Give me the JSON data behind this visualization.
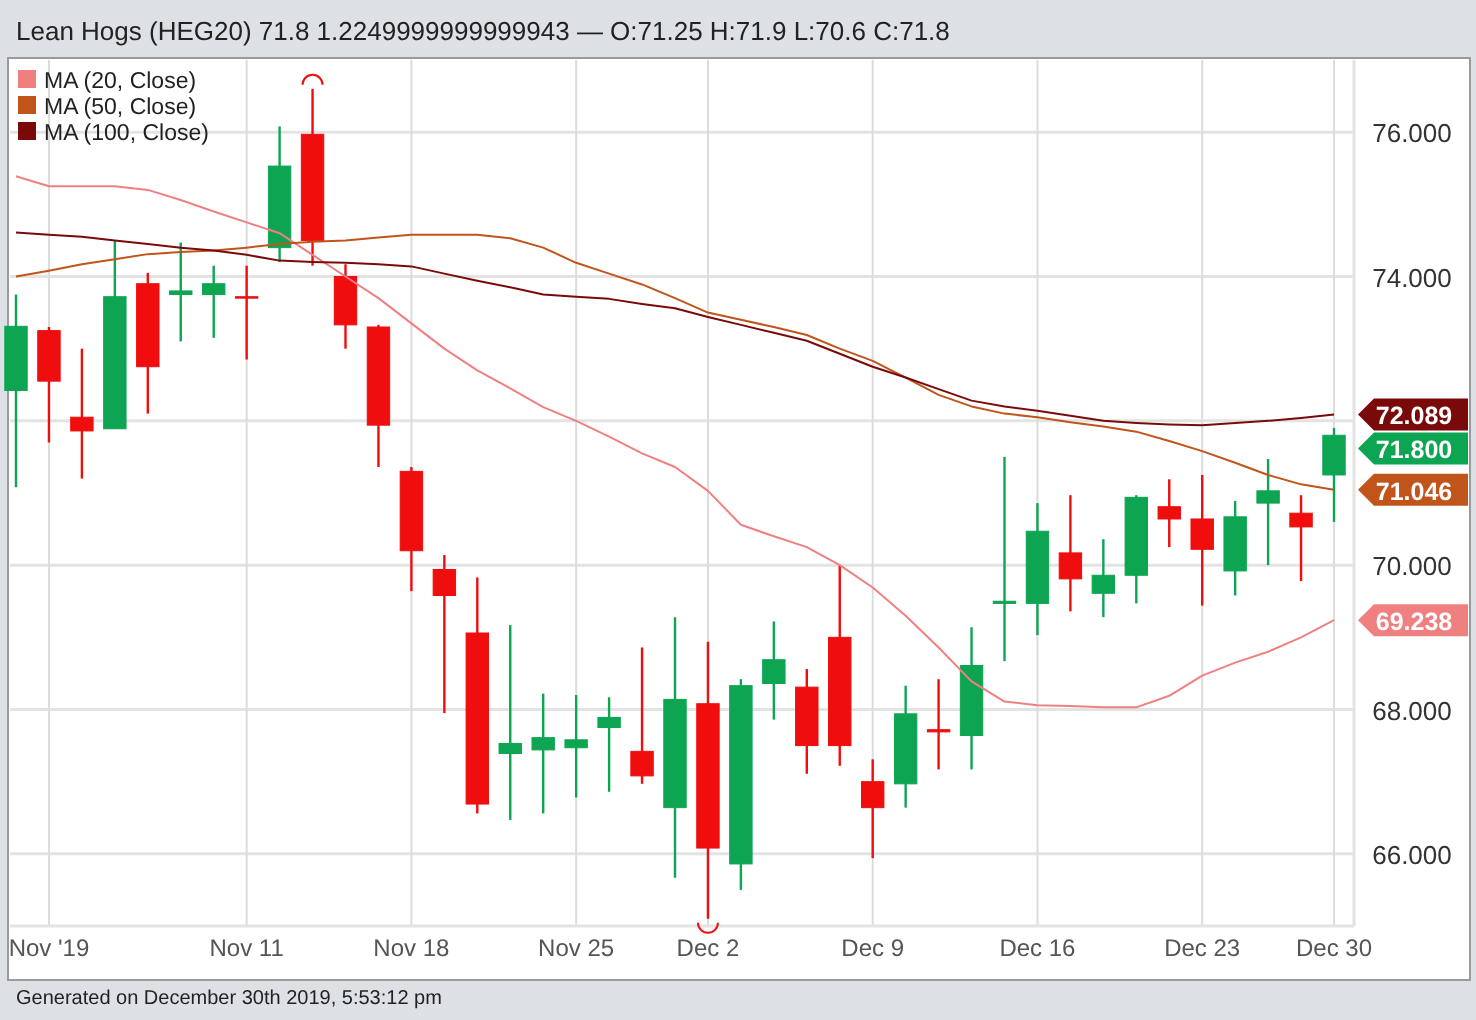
{
  "chart_data": {
    "type": "candlestick",
    "title": "Lean Hogs (HEG20) 71.8 1.2249999999999943 — O:71.25 H:71.9 L:70.6 C:71.8",
    "categories": [
      null,
      "Nov '19",
      null,
      null,
      null,
      null,
      null,
      "Nov 11",
      null,
      null,
      null,
      null,
      "Nov 18",
      null,
      null,
      null,
      null,
      "Nov 25",
      null,
      null,
      null,
      "Dec 2",
      null,
      null,
      null,
      null,
      "Dec 9",
      null,
      null,
      null,
      null,
      "Dec 16",
      null,
      null,
      null,
      null,
      "Dec 23",
      null,
      null,
      null,
      "Dec 30"
    ],
    "ohlc": [
      [
        72.42,
        73.75,
        71.08,
        73.31
      ],
      [
        73.25,
        73.3,
        71.7,
        72.55
      ],
      [
        72.05,
        73.0,
        71.2,
        71.86
      ],
      [
        71.89,
        74.5,
        71.89,
        73.72
      ],
      [
        73.9,
        74.05,
        72.1,
        72.75
      ],
      [
        73.75,
        74.47,
        73.1,
        73.8
      ],
      [
        73.75,
        74.15,
        73.15,
        73.9
      ],
      [
        73.72,
        74.15,
        72.85,
        73.7
      ],
      [
        74.4,
        76.08,
        74.2,
        75.53
      ],
      [
        75.97,
        76.6,
        74.15,
        74.5
      ],
      [
        74.0,
        74.17,
        73.0,
        73.33
      ],
      [
        73.3,
        73.33,
        71.36,
        71.94
      ],
      [
        71.3,
        71.36,
        69.64,
        70.2
      ],
      [
        69.94,
        70.14,
        67.95,
        69.58
      ],
      [
        69.06,
        69.83,
        66.56,
        66.69
      ],
      [
        67.39,
        69.17,
        66.47,
        67.53
      ],
      [
        67.44,
        68.22,
        66.56,
        67.61
      ],
      [
        67.47,
        68.2,
        66.78,
        67.58
      ],
      [
        67.75,
        68.17,
        66.86,
        67.89
      ],
      [
        67.42,
        68.86,
        66.97,
        67.08
      ],
      [
        66.64,
        69.28,
        65.67,
        68.14
      ],
      [
        68.08,
        68.94,
        65.1,
        66.08
      ],
      [
        65.86,
        68.42,
        65.5,
        68.33
      ],
      [
        68.36,
        69.22,
        67.86,
        68.69
      ],
      [
        68.31,
        68.56,
        67.11,
        67.5
      ],
      [
        69.0,
        70.0,
        67.22,
        67.5
      ],
      [
        67.0,
        67.31,
        65.94,
        66.64
      ],
      [
        66.97,
        68.33,
        66.64,
        67.94
      ],
      [
        67.72,
        68.42,
        67.17,
        67.69
      ],
      [
        67.64,
        69.14,
        67.17,
        68.61
      ],
      [
        69.47,
        71.5,
        68.67,
        69.5
      ],
      [
        69.47,
        70.86,
        69.03,
        70.47
      ],
      [
        70.17,
        70.97,
        69.36,
        69.81
      ],
      [
        69.61,
        70.36,
        69.28,
        69.86
      ],
      [
        69.86,
        70.97,
        69.47,
        70.94
      ],
      [
        70.81,
        71.19,
        70.25,
        70.64
      ],
      [
        70.64,
        71.25,
        69.44,
        70.22
      ],
      [
        69.92,
        70.89,
        69.58,
        70.67
      ],
      [
        70.86,
        71.47,
        70.0,
        71.03
      ],
      [
        70.72,
        70.97,
        69.78,
        70.53
      ],
      [
        71.25,
        71.9,
        70.6,
        71.8
      ]
    ],
    "colors": [
      "#0ea552",
      "#f00d0d",
      "#f00d0d",
      "#0ea552",
      "#f00d0d",
      "#0ea552",
      "#0ea552",
      "#f00d0d",
      "#0ea552",
      "#f00d0d",
      "#f00d0d",
      "#f00d0d",
      "#f00d0d",
      "#f00d0d",
      "#f00d0d",
      "#0ea552",
      "#0ea552",
      "#0ea552",
      "#0ea552",
      "#f00d0d",
      "#0ea552",
      "#f00d0d",
      "#0ea552",
      "#0ea552",
      "#f00d0d",
      "#f00d0d",
      "#f00d0d",
      "#0ea552",
      "#f00d0d",
      "#0ea552",
      "#0ea552",
      "#0ea552",
      "#f00d0d",
      "#0ea552",
      "#0ea552",
      "#f00d0d",
      "#f00d0d",
      "#0ea552",
      "#0ea552",
      "#f00d0d",
      "#0ea552"
    ],
    "value_labels": [
      null,
      null,
      null,
      null,
      null,
      null,
      null,
      null,
      null,
      null,
      null,
      null,
      null,
      null,
      null,
      null,
      null,
      null,
      null,
      null,
      null,
      null,
      null,
      null,
      null,
      null,
      null,
      null,
      null,
      null,
      null,
      null,
      null,
      null,
      null,
      null,
      null,
      null,
      null,
      null,
      "71.800"
    ],
    "series": [
      {
        "name": "MA (20, Close)",
        "type": "line",
        "color": "#f08080",
        "values": [
          75.39,
          75.25,
          75.25,
          75.25,
          75.2,
          75.06,
          74.9,
          74.75,
          74.6,
          74.3,
          74.0,
          73.7,
          73.35,
          73.0,
          72.7,
          72.45,
          72.19,
          72.0,
          71.78,
          71.55,
          71.36,
          71.03,
          70.56,
          70.4,
          70.25,
          70.0,
          69.69,
          69.3,
          68.86,
          68.39,
          68.11,
          68.06,
          68.05,
          68.03,
          68.03,
          68.19,
          68.47,
          68.65,
          68.8,
          69.0,
          69.238
        ],
        "value_labels": [
          null,
          null,
          null,
          null,
          null,
          null,
          null,
          null,
          null,
          null,
          null,
          null,
          null,
          null,
          null,
          null,
          null,
          null,
          null,
          null,
          null,
          null,
          null,
          null,
          null,
          null,
          null,
          null,
          null,
          null,
          null,
          null,
          null,
          null,
          null,
          null,
          null,
          null,
          null,
          null,
          "69.238"
        ]
      },
      {
        "name": "MA (50, Close)",
        "type": "line",
        "color": "#c0541a",
        "values": [
          74.0,
          74.08,
          74.17,
          74.24,
          74.31,
          74.34,
          74.36,
          74.4,
          74.45,
          74.48,
          74.5,
          74.54,
          74.58,
          74.58,
          74.58,
          74.53,
          74.4,
          74.19,
          74.04,
          73.89,
          73.7,
          73.5,
          73.4,
          73.3,
          73.19,
          73.0,
          72.83,
          72.6,
          72.36,
          72.2,
          72.1,
          72.05,
          71.98,
          71.92,
          71.85,
          71.72,
          71.58,
          71.42,
          71.25,
          71.12,
          71.046
        ],
        "value_labels": [
          null,
          null,
          null,
          null,
          null,
          null,
          null,
          null,
          null,
          null,
          null,
          null,
          null,
          null,
          null,
          null,
          null,
          null,
          null,
          null,
          null,
          null,
          null,
          null,
          null,
          null,
          null,
          null,
          null,
          null,
          null,
          null,
          null,
          null,
          null,
          null,
          null,
          null,
          null,
          null,
          "71.046"
        ]
      },
      {
        "name": "MA (100, Close)",
        "type": "line",
        "color": "#7a0a0a",
        "values": [
          74.61,
          74.58,
          74.55,
          74.5,
          74.45,
          74.4,
          74.36,
          74.3,
          74.22,
          74.2,
          74.19,
          74.17,
          74.14,
          74.04,
          73.94,
          73.85,
          73.75,
          73.72,
          73.69,
          73.62,
          73.56,
          73.44,
          73.33,
          73.22,
          73.11,
          72.93,
          72.75,
          72.6,
          72.44,
          72.28,
          72.2,
          72.14,
          72.07,
          72.0,
          71.97,
          71.95,
          71.94,
          71.97,
          72.0,
          72.04,
          72.089
        ],
        "value_labels": [
          null,
          null,
          null,
          null,
          null,
          null,
          null,
          null,
          null,
          null,
          null,
          null,
          null,
          null,
          null,
          null,
          null,
          null,
          null,
          null,
          null,
          null,
          null,
          null,
          null,
          null,
          null,
          null,
          null,
          null,
          null,
          null,
          null,
          null,
          null,
          null,
          null,
          null,
          null,
          null,
          "72.089"
        ]
      }
    ],
    "ylim": [
      65,
      77
    ],
    "yticks": [
      {
        "value": 66,
        "label": "66.000"
      },
      {
        "value": 68,
        "label": "68.000"
      },
      {
        "value": 70,
        "label": "70.000"
      },
      {
        "value": 72,
        "label": null
      },
      {
        "value": 74,
        "label": "74.000"
      },
      {
        "value": 76,
        "label": "76.000"
      }
    ],
    "grid": true,
    "legend": "top left",
    "annotations": [
      "Generated on December 30th 2019, 5:53:12 pm"
    ]
  }
}
